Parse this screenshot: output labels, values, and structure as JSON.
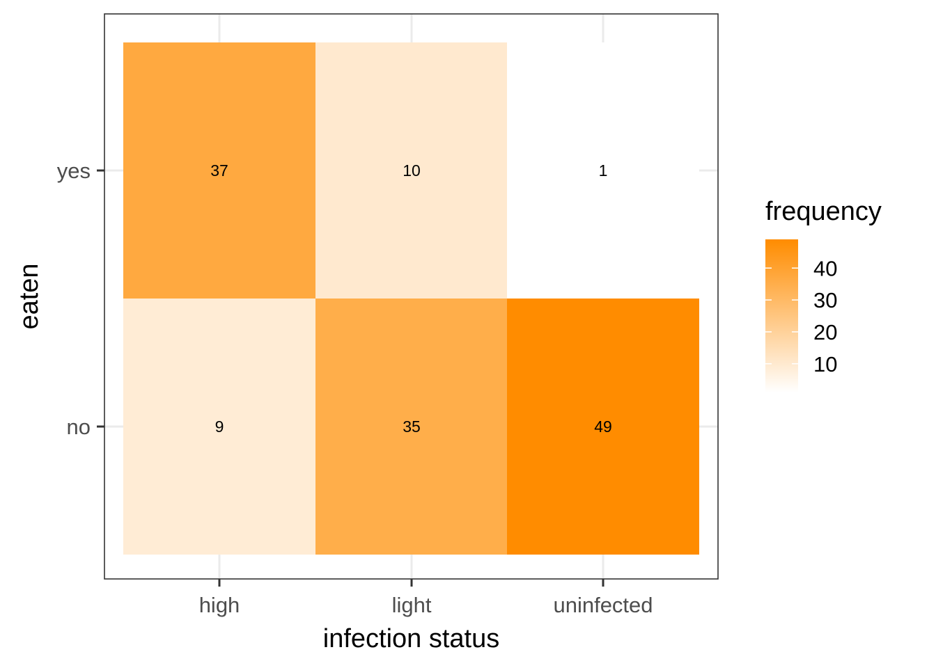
{
  "chart_data": {
    "type": "heatmap",
    "xlabel": "infection status",
    "ylabel": "eaten",
    "x_categories": [
      "high",
      "light",
      "uninfected"
    ],
    "y_categories": [
      "no",
      "yes"
    ],
    "cells": [
      {
        "x": "high",
        "y": "yes",
        "value": 37,
        "label": "37"
      },
      {
        "x": "light",
        "y": "yes",
        "value": 10,
        "label": "10"
      },
      {
        "x": "uninfected",
        "y": "yes",
        "value": 1,
        "label": "1"
      },
      {
        "x": "high",
        "y": "no",
        "value": 9,
        "label": "9"
      },
      {
        "x": "light",
        "y": "no",
        "value": 35,
        "label": "35"
      },
      {
        "x": "uninfected",
        "y": "no",
        "value": 49,
        "label": "49"
      }
    ],
    "legend": {
      "title": "frequency",
      "placement": "right",
      "ticks": [
        10,
        20,
        30,
        40
      ],
      "tick_labels": [
        "10",
        "20",
        "30",
        "40"
      ],
      "range": [
        1,
        49
      ],
      "color_low": "#ffffff",
      "color_high": "#ff8c00"
    },
    "grid": true,
    "panel_border": true
  }
}
